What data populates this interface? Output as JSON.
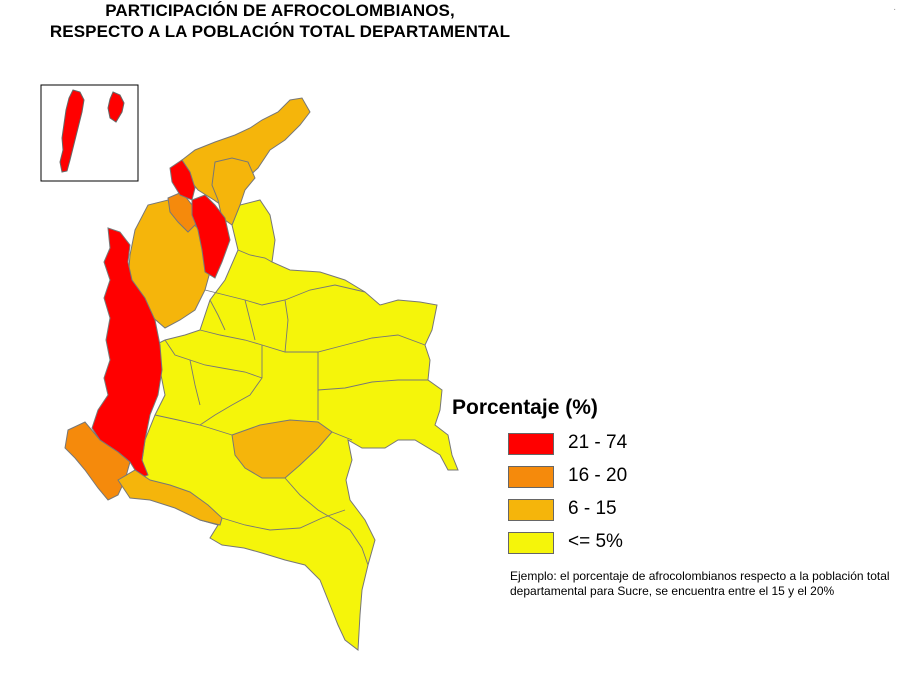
{
  "title": {
    "line1": "PARTICIPACIÓN DE  AFROCOLOMBIANOS,",
    "line2": "RESPECTO A LA POBLACIÓN TOTAL DEPARTAMENTAL"
  },
  "legend": {
    "title": "Porcentaje (%)",
    "items": [
      {
        "label": "21 - 74",
        "color": "#ff0000"
      },
      {
        "label": "16 - 20",
        "color": "#f58a0c"
      },
      {
        "label": "6 - 15",
        "color": "#f5b50b"
      },
      {
        "label": "<= 5%",
        "color": "#f5f50a"
      }
    ]
  },
  "note": "Ejemplo: el porcentaje de afrocolombianos respecto a la población total departamental para Sucre, se encuentra entre el 15 y el 20%",
  "corner_mark": "·"
}
